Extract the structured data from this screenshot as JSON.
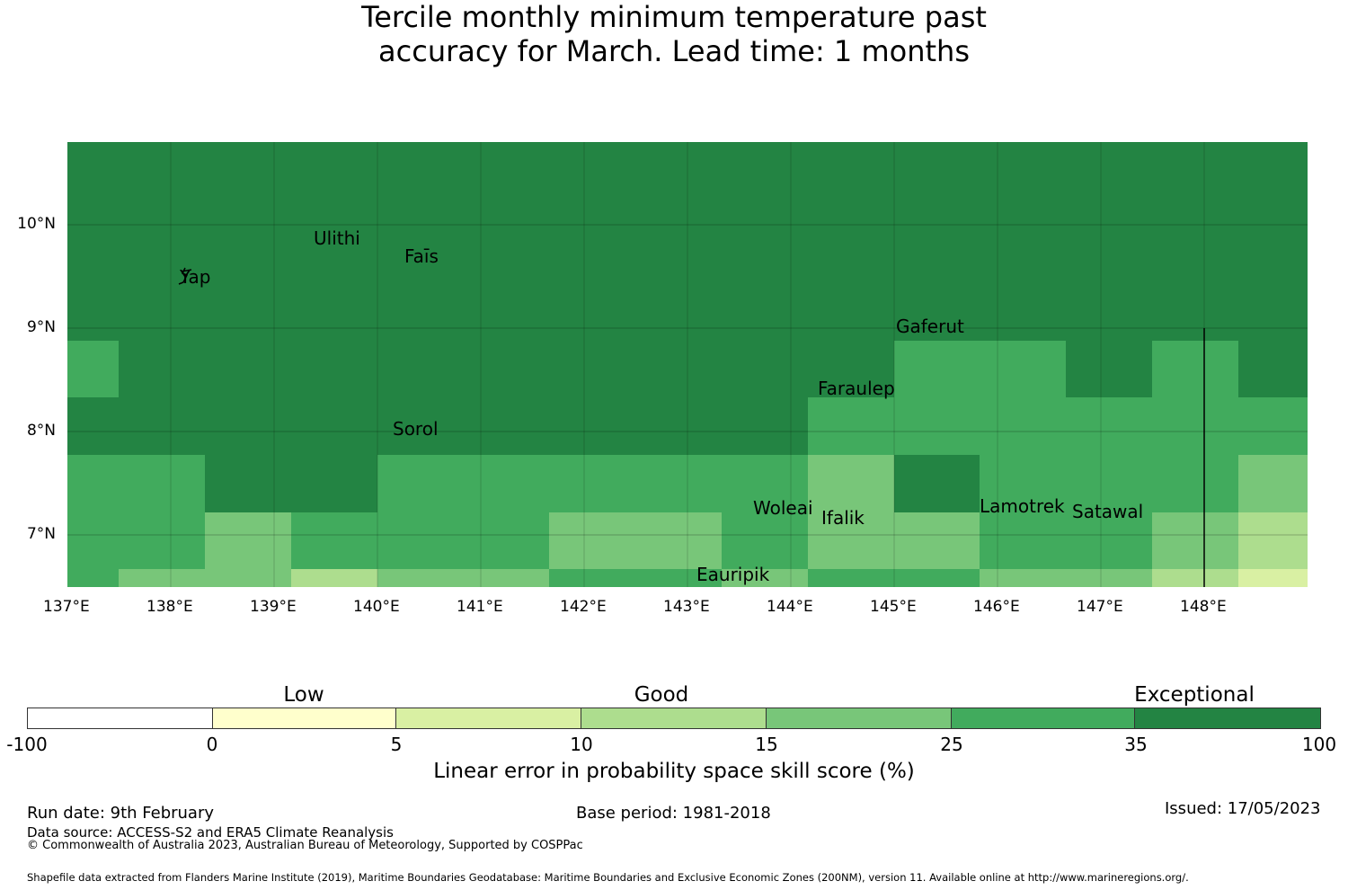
{
  "title_line1": "Tercile monthly minimum temperature past",
  "title_line2": "accuracy for March. Lead time: 1 months",
  "map": {
    "lon_range": [
      137.0,
      149.0
    ],
    "lat_range": [
      6.5,
      10.8
    ],
    "lon_ticks": [
      "137°E",
      "138°E",
      "139°E",
      "140°E",
      "141°E",
      "142°E",
      "143°E",
      "144°E",
      "145°E",
      "146°E",
      "147°E",
      "148°E"
    ],
    "lat_ticks": [
      "10°N",
      "9°N",
      "8°N",
      "7°N"
    ],
    "islands": [
      {
        "name": "Ulithi"
      },
      {
        "name": "Faīs"
      },
      {
        "name": "Yap"
      },
      {
        "name": "Gaferut"
      },
      {
        "name": "Faraulep"
      },
      {
        "name": "Sorol"
      },
      {
        "name": "Woleai"
      },
      {
        "name": "Ifalik"
      },
      {
        "name": "Lamotrek"
      },
      {
        "name": "Satawal"
      },
      {
        "name": "Eauripik"
      }
    ],
    "colors": {
      "exceptional": "#238443",
      "c25_35": "#41ab5d",
      "c15_25": "#78c679",
      "c10_15": "#addd8e",
      "c5_10": "#d9f0a3"
    }
  },
  "colorbar": {
    "categories": [
      "Low",
      "Good",
      "Exceptional"
    ],
    "ticks": [
      "-100",
      "0",
      "5",
      "10",
      "15",
      "25",
      "35",
      "100"
    ],
    "colors": [
      "#ffffff",
      "#ffffcc",
      "#d9f0a3",
      "#addd8e",
      "#78c679",
      "#41ab5d",
      "#238443"
    ],
    "label": "Linear error in probability space skill score (%)"
  },
  "footer": {
    "run_date": "Run date: 9th February",
    "base_period": "Base period: 1981-2018",
    "issued": "Issued: 17/05/2023",
    "data_source": "Data source: ACCESS-S2 and ERA5 Climate Reanalysis",
    "copyright": "© Commonwealth of Australia 2023, Australian Bureau of Meteorology, Supported by COSPPac",
    "shapefile": "Shapefile data extracted from Flanders Marine Institute (2019), Maritime Boundaries Geodatabase: Maritime Boundaries and Exclusive Economic Zones (200NM), version 11. Available online at http://www.marineregions.org/."
  }
}
